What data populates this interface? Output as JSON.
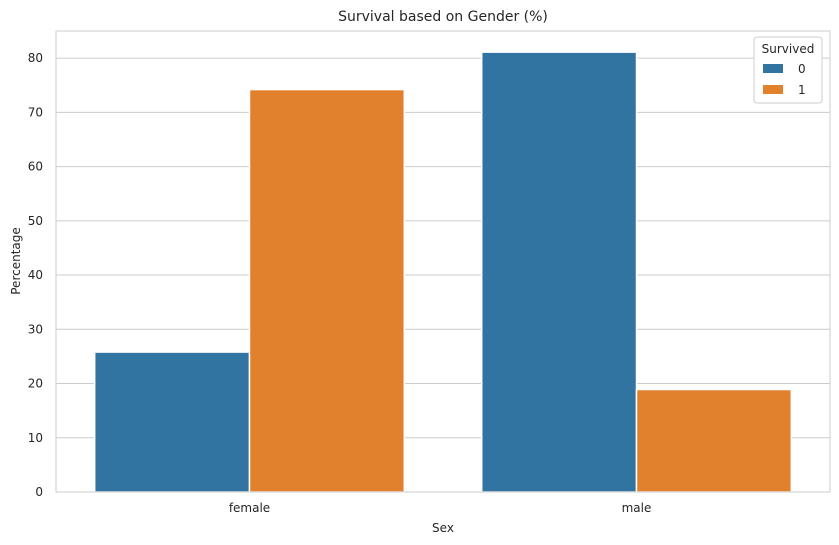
{
  "chart_data": {
    "type": "bar",
    "title": "Survival based on Gender (%)",
    "xlabel": "Sex",
    "ylabel": "Percentage",
    "categories": [
      "female",
      "male"
    ],
    "series": [
      {
        "name": "0",
        "values": [
          25.8,
          81.1
        ],
        "color": "#3274a1"
      },
      {
        "name": "1",
        "values": [
          74.2,
          18.9
        ],
        "color": "#e1812c"
      }
    ],
    "ylim": [
      0,
      85
    ],
    "yticks": [
      0,
      10,
      20,
      30,
      40,
      50,
      60,
      70,
      80
    ],
    "grid": true,
    "legend": {
      "title": "Survived",
      "placement": "top-right"
    }
  }
}
